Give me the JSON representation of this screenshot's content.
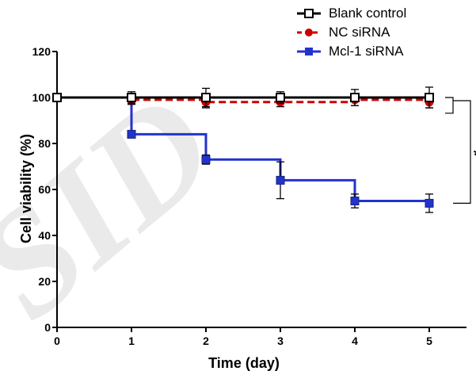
{
  "watermark": "SID",
  "chart_data": {
    "type": "line",
    "title": "",
    "xlabel": "Time (day)",
    "ylabel": "Cell viability (%)",
    "xlim": [
      0,
      5.5
    ],
    "ylim": [
      0,
      120
    ],
    "x_ticks": [
      0,
      1,
      2,
      3,
      4,
      5
    ],
    "y_ticks": [
      0,
      20,
      40,
      60,
      80,
      100,
      120
    ],
    "step": true,
    "grid": false,
    "legend_position": "top-right",
    "series": [
      {
        "name": "Blank control",
        "color": "#000000",
        "line_style": "solid",
        "marker": "open-square",
        "x": [
          0,
          1,
          2,
          3,
          4,
          5
        ],
        "y": [
          100,
          100,
          100,
          100,
          100,
          100
        ],
        "error": [
          0,
          2.5,
          4,
          2.5,
          3.5,
          4.5
        ]
      },
      {
        "name": "NC siRNA",
        "color": "#cc0000",
        "line_style": "dashed",
        "marker": "circle",
        "x": [
          0,
          1,
          2,
          3,
          4,
          5
        ],
        "y": [
          100,
          99,
          98,
          98,
          99,
          98
        ],
        "error": [
          0,
          2,
          2.5,
          2,
          2.5,
          2.5
        ]
      },
      {
        "name": "Mcl-1 siRNA",
        "color": "#2233cc",
        "line_style": "solid",
        "marker": "square",
        "x": [
          0,
          1,
          2,
          3,
          4,
          5
        ],
        "y": [
          100,
          84,
          73,
          64,
          55,
          54
        ],
        "error": [
          0,
          1.5,
          2,
          8,
          3,
          4
        ]
      }
    ],
    "annotations": [
      {
        "text": "*",
        "type": "significance-bracket",
        "from_y": [
          100,
          98
        ],
        "to_y": 54
      }
    ]
  }
}
